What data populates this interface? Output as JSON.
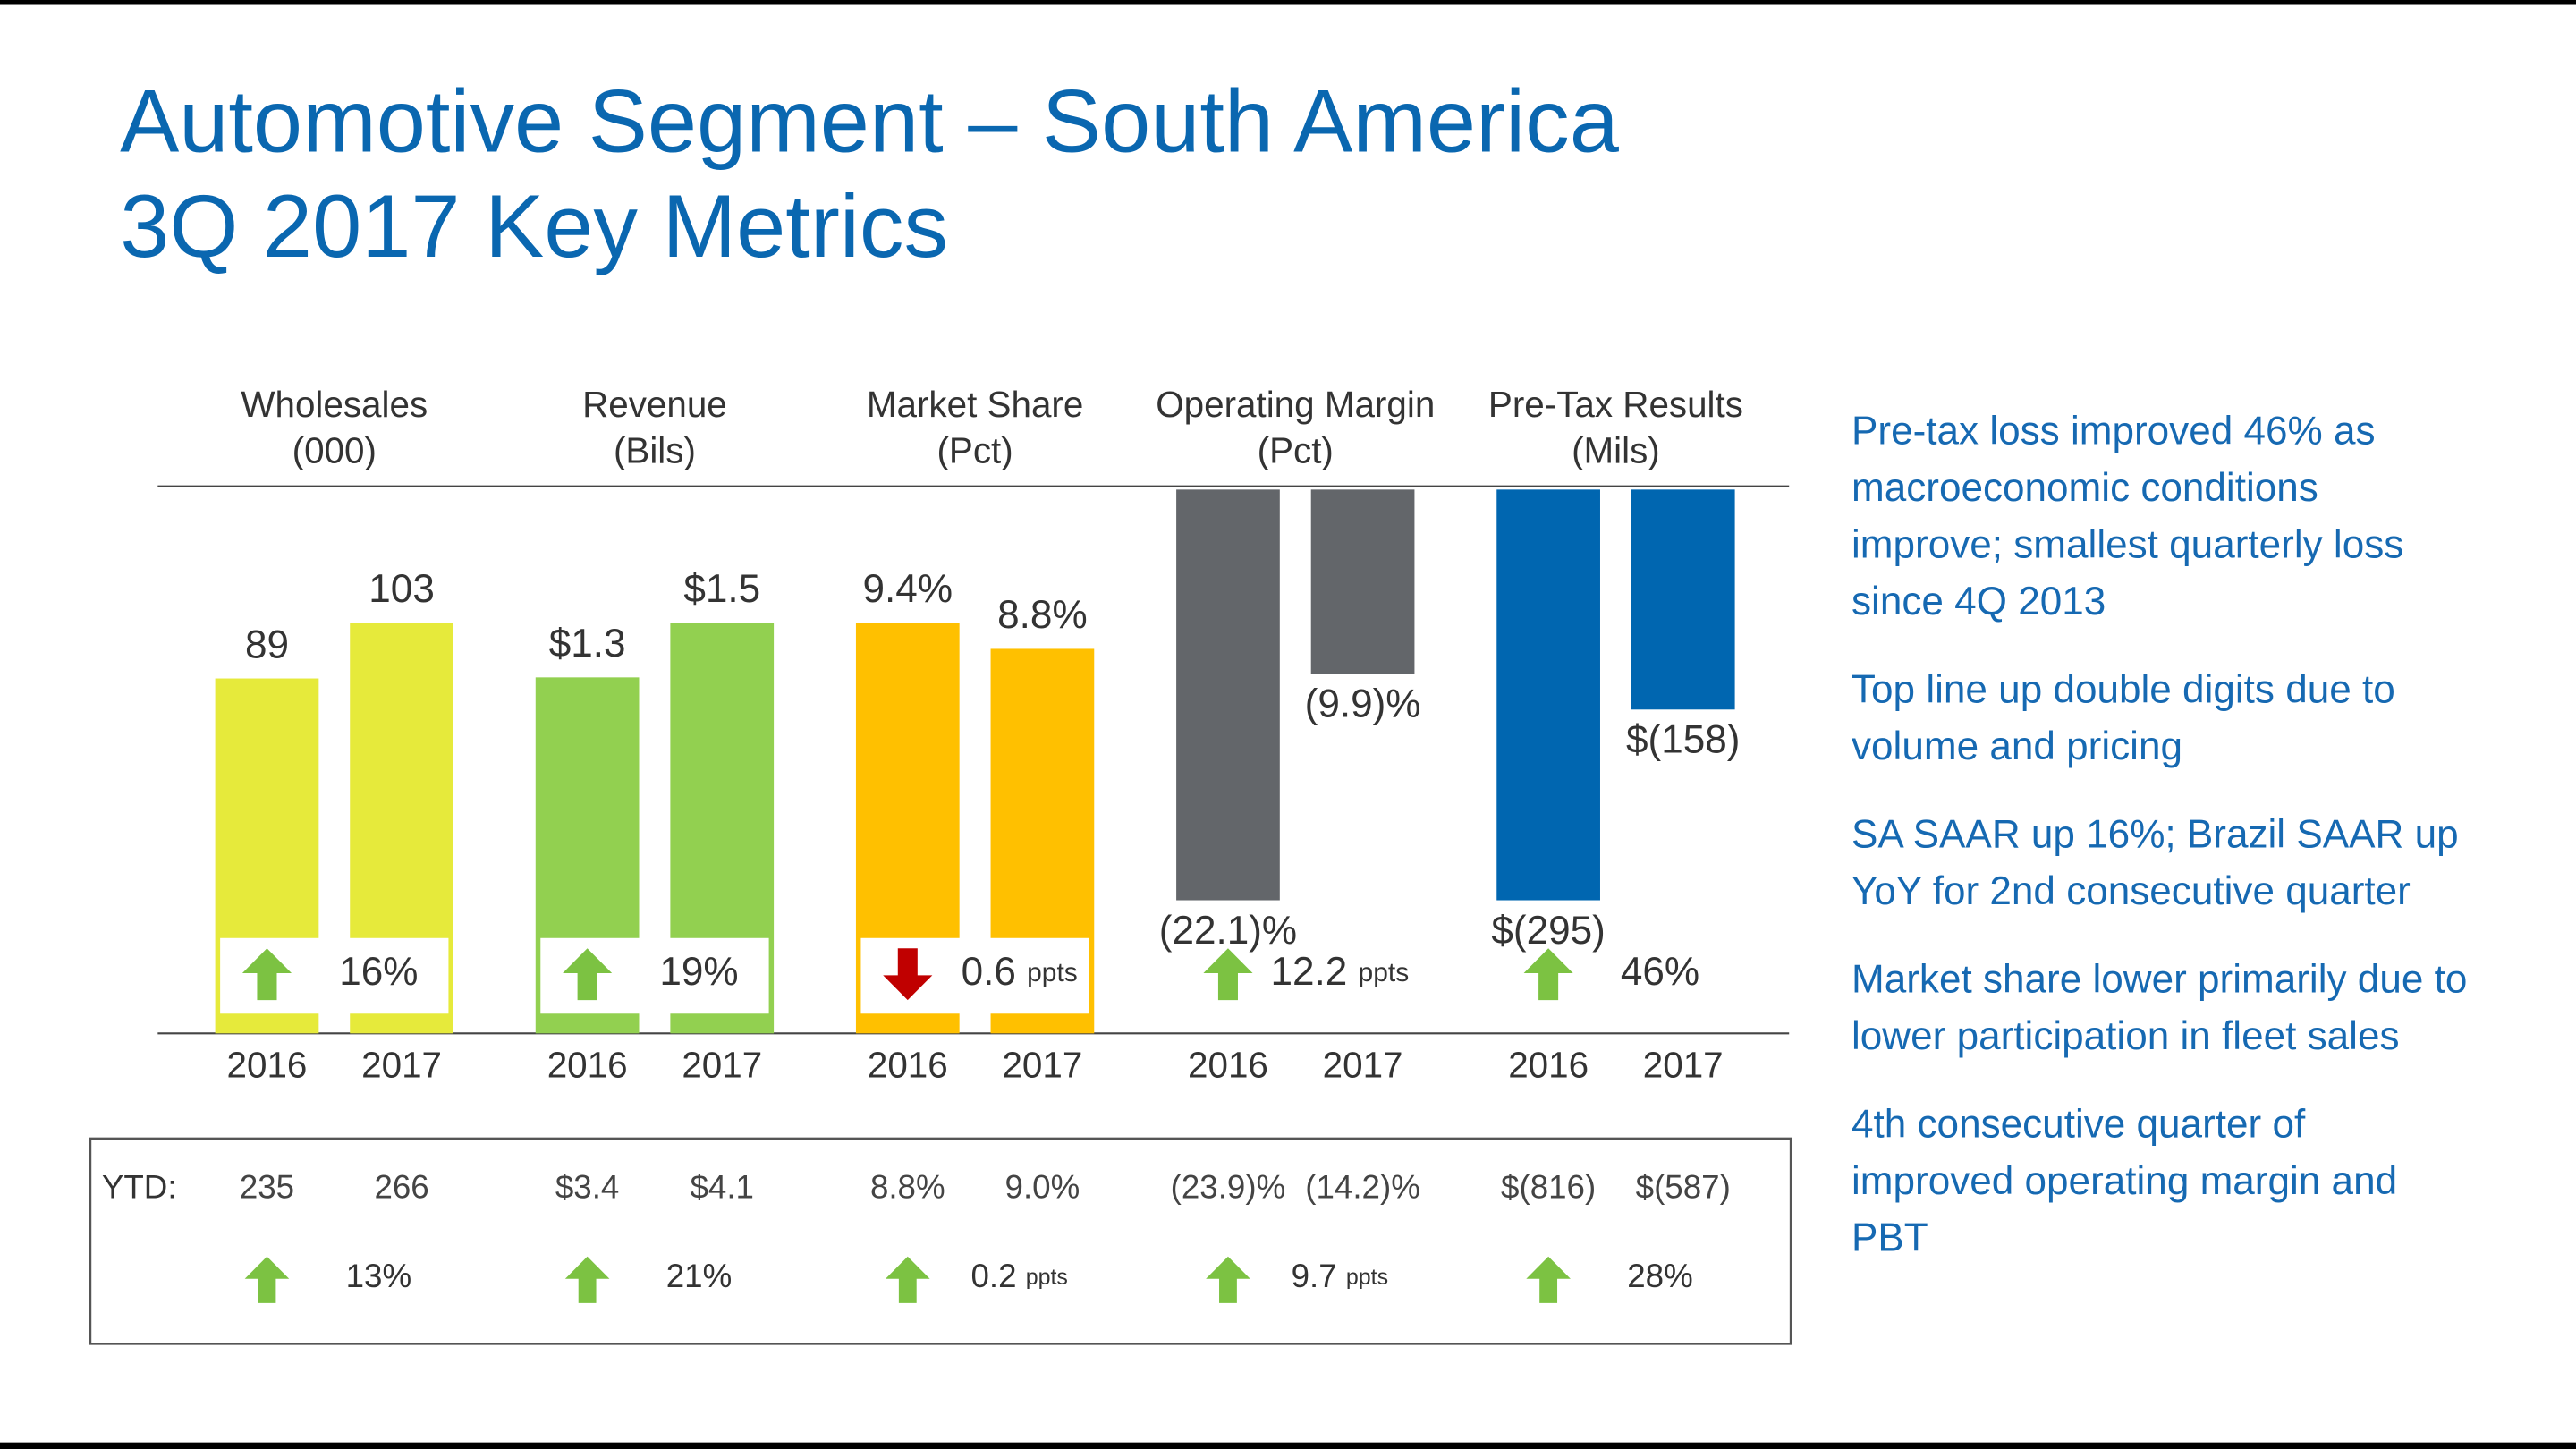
{
  "title": "Automotive Segment – South America",
  "subtitle": "3Q 2017 Key Metrics",
  "ytd_label": "YTD:",
  "chart_data": [
    {
      "type": "bar",
      "title": "Wholesales",
      "subtitle": "(000)",
      "categories": [
        "2016",
        "2017"
      ],
      "values": [
        89,
        103
      ],
      "color": "#e6ea3b",
      "change": {
        "direction": "up",
        "value": "16%"
      },
      "ytd": [
        "235",
        "266"
      ],
      "ytd_change": {
        "direction": "up",
        "value": "13%"
      }
    },
    {
      "type": "bar",
      "title": "Revenue",
      "subtitle": "(Bils)",
      "categories": [
        "2016",
        "2017"
      ],
      "values": [
        1.3,
        1.5
      ],
      "value_labels": [
        "$1.3",
        "$1.5"
      ],
      "color": "#92d050",
      "change": {
        "direction": "up",
        "value": "19%"
      },
      "ytd": [
        "$3.4",
        "$4.1"
      ],
      "ytd_change": {
        "direction": "up",
        "value": "21%"
      }
    },
    {
      "type": "bar",
      "title": "Market Share",
      "subtitle": "(Pct)",
      "categories": [
        "2016",
        "2017"
      ],
      "values": [
        9.4,
        8.8
      ],
      "value_labels": [
        "9.4%",
        "8.8%"
      ],
      "color": "#ffc000",
      "change": {
        "direction": "down",
        "value": "0.6",
        "unit": "ppts"
      },
      "ytd": [
        "8.8%",
        "9.0%"
      ],
      "ytd_change": {
        "direction": "up",
        "value": "0.2",
        "unit": "ppts"
      }
    },
    {
      "type": "bar",
      "title": "Operating Margin",
      "subtitle": "(Pct)",
      "categories": [
        "2016",
        "2017"
      ],
      "values": [
        -22.1,
        -9.9
      ],
      "value_labels": [
        "(22.1)%",
        "(9.9)%"
      ],
      "color": "#63666a",
      "change": {
        "direction": "up",
        "value": "12.2",
        "unit": "ppts"
      },
      "ytd": [
        "(23.9)%",
        "(14.2)%"
      ],
      "ytd_change": {
        "direction": "up",
        "value": "9.7",
        "unit": "ppts"
      }
    },
    {
      "type": "bar",
      "title": "Pre-Tax Results",
      "subtitle": "(Mils)",
      "categories": [
        "2016",
        "2017"
      ],
      "values": [
        -295,
        -158
      ],
      "value_labels": [
        "$(295)",
        "$(158)"
      ],
      "color": "#0066b0",
      "change": {
        "direction": "up",
        "value": "46%"
      },
      "ytd": [
        "$(816)",
        "$(587)"
      ],
      "ytd_change": {
        "direction": "up",
        "value": "28%"
      }
    }
  ],
  "notes": [
    [
      "Pre-tax loss improved 46% as",
      "macroeconomic conditions",
      "improve; smallest quarterly loss",
      "since 4Q 2013"
    ],
    [
      "Top line up double digits due to",
      "volume and pricing"
    ],
    [
      "SA SAAR up 16%; Brazil SAAR up",
      "YoY for 2nd consecutive quarter"
    ],
    [
      "Market share lower primarily due to",
      "lower participation in fleet sales"
    ],
    [
      "4th consecutive quarter of",
      "improved operating margin and",
      "PBT"
    ]
  ]
}
